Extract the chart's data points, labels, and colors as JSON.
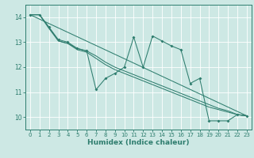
{
  "title": "",
  "xlabel": "Humidex (Indice chaleur)",
  "xlim": [
    -0.5,
    23.5
  ],
  "ylim": [
    9.5,
    14.5
  ],
  "yticks": [
    10,
    11,
    12,
    13,
    14
  ],
  "xticks": [
    0,
    1,
    2,
    3,
    4,
    5,
    6,
    7,
    8,
    9,
    10,
    11,
    12,
    13,
    14,
    15,
    16,
    17,
    18,
    19,
    20,
    21,
    22,
    23
  ],
  "bg_color": "#cde8e4",
  "line_color": "#2e7d6e",
  "grid_color": "#ffffff",
  "series_zigzag": {
    "x": [
      0,
      1,
      2,
      3,
      4,
      5,
      6,
      7,
      8,
      9,
      10,
      11,
      12,
      13,
      14,
      15,
      16,
      17,
      18,
      19,
      20,
      21,
      22,
      23
    ],
    "y": [
      14.1,
      14.1,
      13.6,
      13.1,
      13.0,
      12.75,
      12.65,
      11.1,
      11.55,
      11.75,
      12.0,
      13.2,
      12.0,
      13.25,
      13.05,
      12.85,
      12.7,
      11.35,
      11.55,
      9.85,
      9.85,
      9.85,
      10.1,
      10.05
    ]
  },
  "series_smooth1": {
    "x": [
      0,
      1,
      2,
      3,
      4,
      5,
      6,
      7,
      8,
      9,
      10,
      11,
      12,
      13,
      14,
      15,
      16,
      17,
      18,
      19,
      20,
      21,
      22,
      23
    ],
    "y": [
      14.1,
      14.1,
      13.6,
      13.05,
      12.95,
      12.7,
      12.6,
      12.35,
      12.1,
      11.9,
      11.75,
      11.6,
      11.45,
      11.3,
      11.15,
      11.0,
      10.85,
      10.7,
      10.55,
      10.4,
      10.3,
      10.2,
      10.1,
      10.05
    ]
  },
  "series_smooth2": {
    "x": [
      0,
      1,
      2,
      3,
      4,
      5,
      6,
      7,
      8,
      9,
      10,
      11,
      12,
      13,
      14,
      15,
      16,
      17,
      18,
      19,
      20,
      21,
      22,
      23
    ],
    "y": [
      14.1,
      14.1,
      13.55,
      13.05,
      12.95,
      12.75,
      12.65,
      12.45,
      12.2,
      12.0,
      11.85,
      11.7,
      11.55,
      11.4,
      11.25,
      11.1,
      10.95,
      10.8,
      10.65,
      10.5,
      10.35,
      10.25,
      10.1,
      10.05
    ]
  },
  "series_line": {
    "x": [
      0,
      23
    ],
    "y": [
      14.1,
      10.05
    ]
  }
}
